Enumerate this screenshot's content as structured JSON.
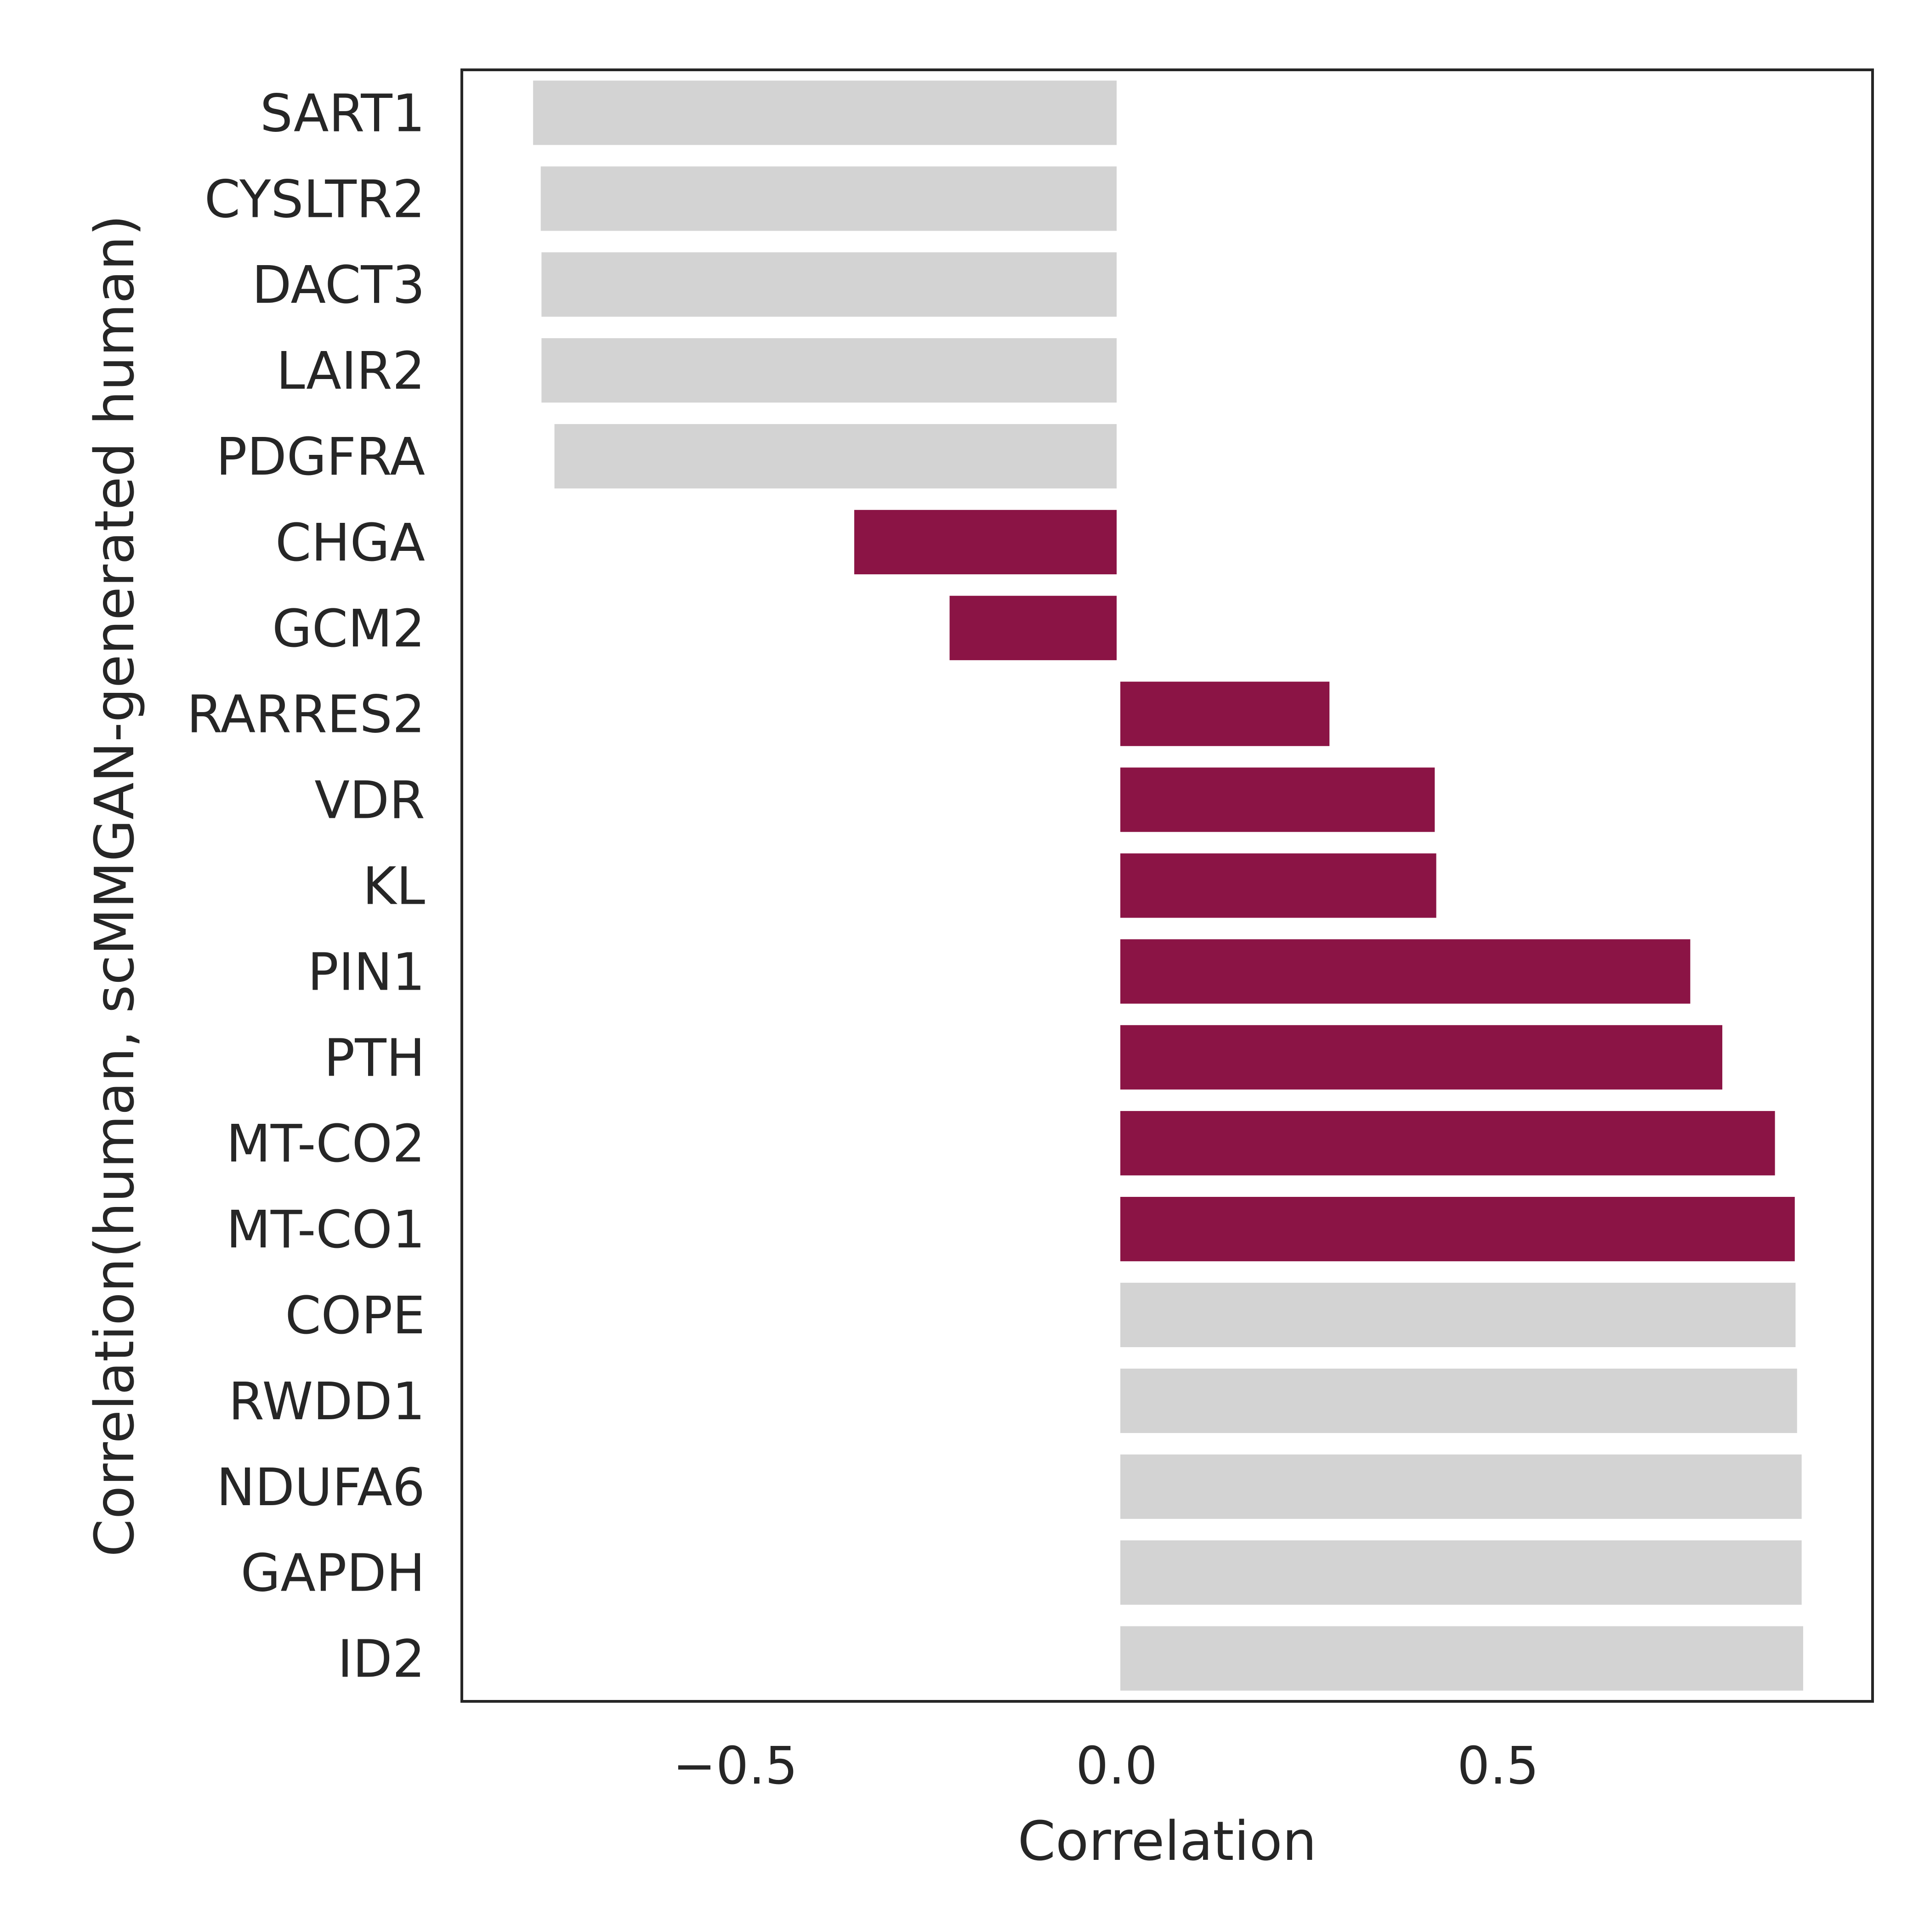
{
  "chart_data": {
    "type": "bar",
    "orientation": "horizontal",
    "title": "",
    "xlabel": "Correlation",
    "ylabel": "Correlation(human, scMMGAN-generated human)",
    "xlim": [
      -0.86,
      0.98
    ],
    "xticks": [
      -0.5,
      0.0,
      0.5
    ],
    "xtick_labels": [
      "−0.5",
      "0.0",
      "0.5"
    ],
    "grid": false,
    "categories": [
      "SART1",
      "CYSLTR2",
      "DACT3",
      "LAIR2",
      "PDGFRA",
      "CHGA",
      "GCM2",
      "RARRES2",
      "VDR",
      "KL",
      "PIN1",
      "PTH",
      "MT-CO2",
      "MT-CO1",
      "COPE",
      "RWDD1",
      "NDUFA6",
      "GAPDH",
      "ID2"
    ],
    "values": [
      -0.765,
      -0.755,
      -0.754,
      -0.754,
      -0.737,
      -0.344,
      -0.219,
      0.279,
      0.417,
      0.419,
      0.752,
      0.794,
      0.863,
      0.889,
      0.89,
      0.892,
      0.898,
      0.898,
      0.9
    ],
    "highlighted": [
      false,
      false,
      false,
      false,
      false,
      true,
      true,
      true,
      true,
      true,
      true,
      true,
      true,
      true,
      false,
      false,
      false,
      false,
      false
    ],
    "colors": {
      "highlight": "#8b1445",
      "default": "#d3d3d3",
      "axis": "#262626"
    }
  }
}
